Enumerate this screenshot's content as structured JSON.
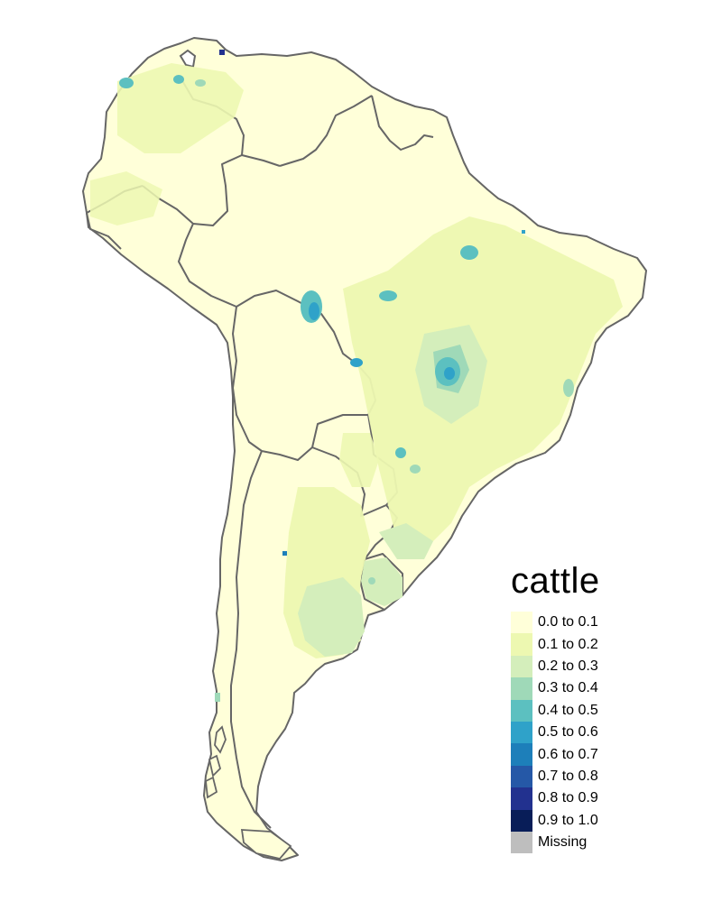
{
  "legend": {
    "title": "cattle",
    "items": [
      {
        "label": "0.0 to 0.1",
        "color": "#ffffd9"
      },
      {
        "label": "0.1 to 0.2",
        "color": "#edf8b1"
      },
      {
        "label": "0.2 to 0.3",
        "color": "#d4eebb"
      },
      {
        "label": "0.3 to 0.4",
        "color": "#9fd9b8"
      },
      {
        "label": "0.4 to 0.5",
        "color": "#5cc0c0"
      },
      {
        "label": "0.5 to 0.6",
        "color": "#2fa2c9"
      },
      {
        "label": "0.6 to 0.7",
        "color": "#1d7fba"
      },
      {
        "label": "0.7 to 0.8",
        "color": "#2558a7"
      },
      {
        "label": "0.8 to 0.9",
        "color": "#22318f"
      },
      {
        "label": "0.9 to 1.0",
        "color": "#081d58"
      },
      {
        "label": "Missing",
        "color": "#bebebe"
      }
    ]
  },
  "map": {
    "region": "South America",
    "border_color": "#666666",
    "base_color": "#ffffd9"
  }
}
